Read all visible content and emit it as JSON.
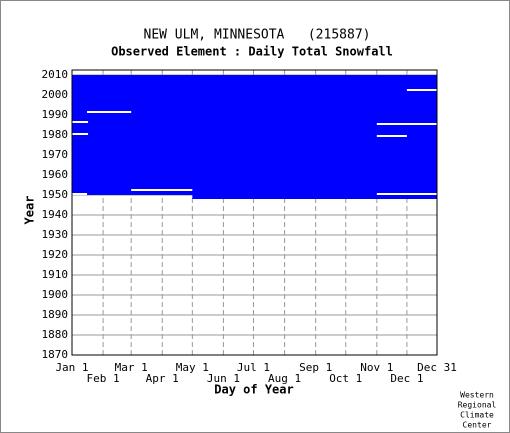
{
  "chart_data": {
    "type": "coverage",
    "title": "NEW ULM, MINNESOTA   (215887)",
    "subtitle": "Observed Element : Daily Total Snowfall",
    "xlabel": "Day of Year",
    "ylabel": "Year",
    "credit": [
      "Western",
      "Regional",
      "Climate",
      "Center"
    ],
    "xlim": [
      1,
      365
    ],
    "ylim": [
      1870,
      2010
    ],
    "xticks": [
      {
        "value": 1,
        "label": "Jan 1"
      },
      {
        "value": 32,
        "label": "Feb 1"
      },
      {
        "value": 60,
        "label": "Mar 1"
      },
      {
        "value": 91,
        "label": "Apr 1"
      },
      {
        "value": 121,
        "label": "May 1"
      },
      {
        "value": 152,
        "label": "Jun 1"
      },
      {
        "value": 182,
        "label": "Jul 1"
      },
      {
        "value": 213,
        "label": "Aug 1"
      },
      {
        "value": 244,
        "label": "Sep 1"
      },
      {
        "value": 274,
        "label": "Oct 1"
      },
      {
        "value": 305,
        "label": "Nov 1"
      },
      {
        "value": 335,
        "label": "Dec 1"
      },
      {
        "value": 365,
        "label": "Dec 31"
      }
    ],
    "yticks": [
      1870,
      1880,
      1890,
      1900,
      1910,
      1920,
      1930,
      1940,
      1950,
      1960,
      1970,
      1980,
      1990,
      2000,
      2010
    ],
    "grid": true,
    "color": "#0000ff",
    "gap_color": "#ffffff",
    "blocks": [
      {
        "x": [
          1,
          365
        ],
        "y": [
          1950,
          2010
        ]
      },
      {
        "x": [
          121,
          365
        ],
        "y": [
          1948,
          1950
        ]
      }
    ],
    "gaps": [
      {
        "x": [
          1,
          17
        ],
        "y": [
          1986,
          1987
        ]
      },
      {
        "x": [
          1,
          17
        ],
        "y": [
          1980,
          1981
        ]
      },
      {
        "x": [
          16,
          60
        ],
        "y": [
          1991,
          1992
        ]
      },
      {
        "x": [
          305,
          365
        ],
        "y": [
          1985,
          1986
        ]
      },
      {
        "x": [
          305,
          335
        ],
        "y": [
          1979,
          1980
        ]
      },
      {
        "x": [
          335,
          365
        ],
        "y": [
          2002,
          2003
        ]
      },
      {
        "x": [
          60,
          121
        ],
        "y": [
          1952,
          1953
        ]
      },
      {
        "x": [
          1,
          16
        ],
        "y": [
          1950,
          1951
        ]
      },
      {
        "x": [
          305,
          365
        ],
        "y": [
          1950,
          1951
        ]
      }
    ]
  }
}
